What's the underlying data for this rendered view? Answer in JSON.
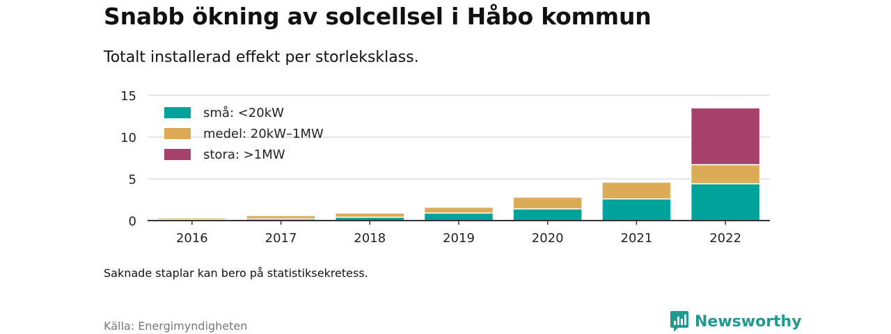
{
  "header": {
    "title": "Snabb ökning av solcellsel i Håbo kommun",
    "subtitle": "Totalt installerad effekt per storleksklass."
  },
  "footer": {
    "note": "Saknade staplar kan bero på statistiksekretess.",
    "source": "Källa: Energimyndigheten",
    "brand": "Newsworthy",
    "brand_icon": "bar-chart-logo-icon",
    "brand_color": "#1f9a8e"
  },
  "chart_data": {
    "type": "bar",
    "stacked": true,
    "title": "Snabb ökning av solcellsel i Håbo kommun",
    "subtitle": "Totalt installerad effekt per storleksklass.",
    "xlabel": "",
    "ylabel": "",
    "categories": [
      "2016",
      "2017",
      "2018",
      "2019",
      "2020",
      "2021",
      "2022"
    ],
    "series": [
      {
        "name": "små: <20kW",
        "color": "#00a399",
        "values": [
          0.1,
          0.2,
          0.4,
          0.9,
          1.4,
          2.6,
          4.4
        ]
      },
      {
        "name": "medel: 20kW–1MW",
        "color": "#dbab57",
        "values": [
          0.2,
          0.4,
          0.5,
          0.7,
          1.4,
          2.0,
          2.3
        ]
      },
      {
        "name": "stora: >1MW",
        "color": "#a6416b",
        "values": [
          0,
          0,
          0,
          0,
          0,
          0,
          6.8
        ]
      }
    ],
    "ylim": [
      0,
      15
    ],
    "yticks": [
      0,
      5,
      10,
      15
    ],
    "grid": true,
    "legend": "top-left"
  }
}
